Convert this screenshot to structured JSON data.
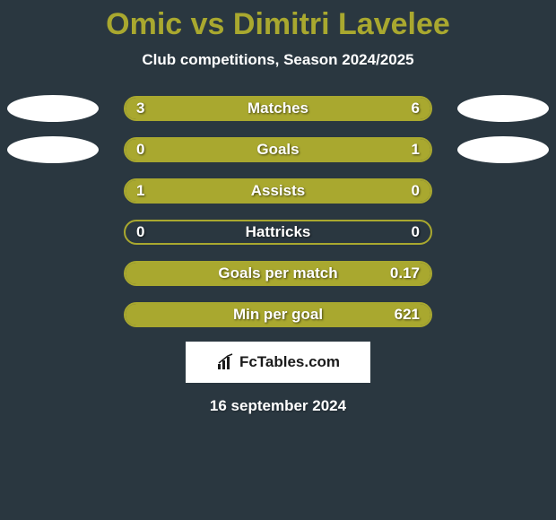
{
  "title": "Omic vs Dimitri Lavelee",
  "subtitle": "Club competitions, Season 2024/2025",
  "colors": {
    "background": "#2a3740",
    "accent": "#a9a82f",
    "text": "#ffffff",
    "badge_bg": "#ffffff",
    "badge_text": "#1a1a1a"
  },
  "stats": [
    {
      "label": "Matches",
      "left_val": "3",
      "right_val": "6",
      "left_pct": 33,
      "right_pct": 67,
      "show_left_ellipse": true,
      "show_right_ellipse": true
    },
    {
      "label": "Goals",
      "left_val": "0",
      "right_val": "1",
      "left_pct": 0,
      "right_pct": 100,
      "show_left_ellipse": true,
      "show_right_ellipse": true
    },
    {
      "label": "Assists",
      "left_val": "1",
      "right_val": "0",
      "left_pct": 100,
      "right_pct": 0,
      "show_left_ellipse": false,
      "show_right_ellipse": false
    },
    {
      "label": "Hattricks",
      "left_val": "0",
      "right_val": "0",
      "left_pct": 0,
      "right_pct": 0,
      "show_left_ellipse": false,
      "show_right_ellipse": false
    },
    {
      "label": "Goals per match",
      "left_val": "",
      "right_val": "0.17",
      "left_pct": 0,
      "right_pct": 100,
      "show_left_ellipse": false,
      "show_right_ellipse": false,
      "hide_left_val": true
    },
    {
      "label": "Min per goal",
      "left_val": "",
      "right_val": "621",
      "left_pct": 0,
      "right_pct": 100,
      "show_left_ellipse": false,
      "show_right_ellipse": false,
      "hide_left_val": true
    }
  ],
  "footer": {
    "brand": "FcTables.com",
    "date": "16 september 2024"
  }
}
